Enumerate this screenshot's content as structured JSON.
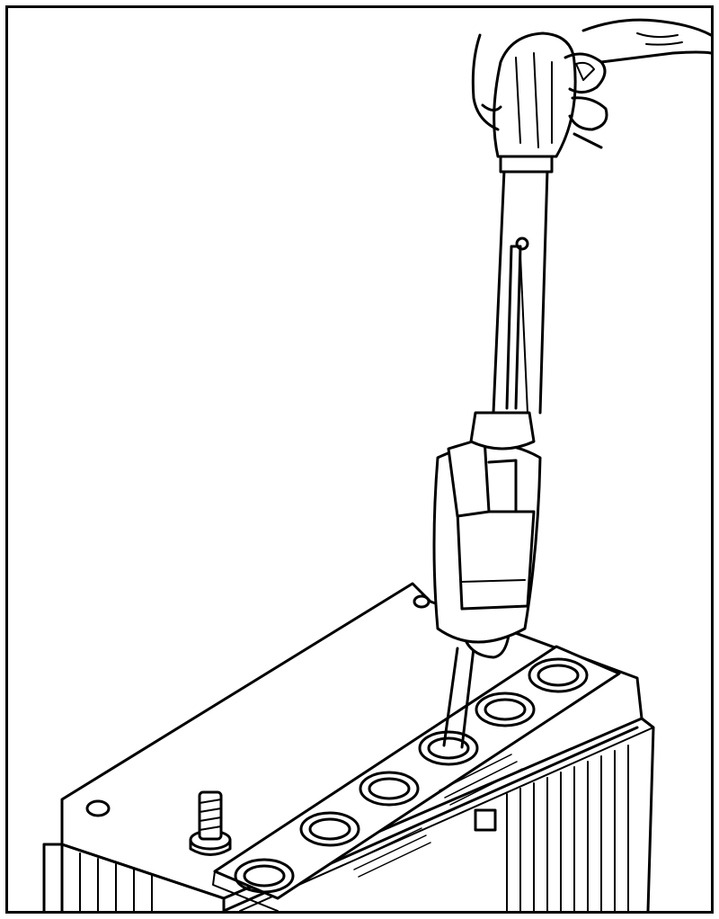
{
  "figure": {
    "subject": "battery-hydrometer-test",
    "colors": {
      "ink": "#000000",
      "paper": "#ffffff",
      "border": "#000000"
    },
    "parts": {
      "hand": "hand-icon",
      "hydrometer": "hydrometer-icon",
      "battery": "battery-icon",
      "terminal": "terminal-post-icon",
      "cell_caps": "cell-opening-icon"
    },
    "cell_openings": 6
  }
}
